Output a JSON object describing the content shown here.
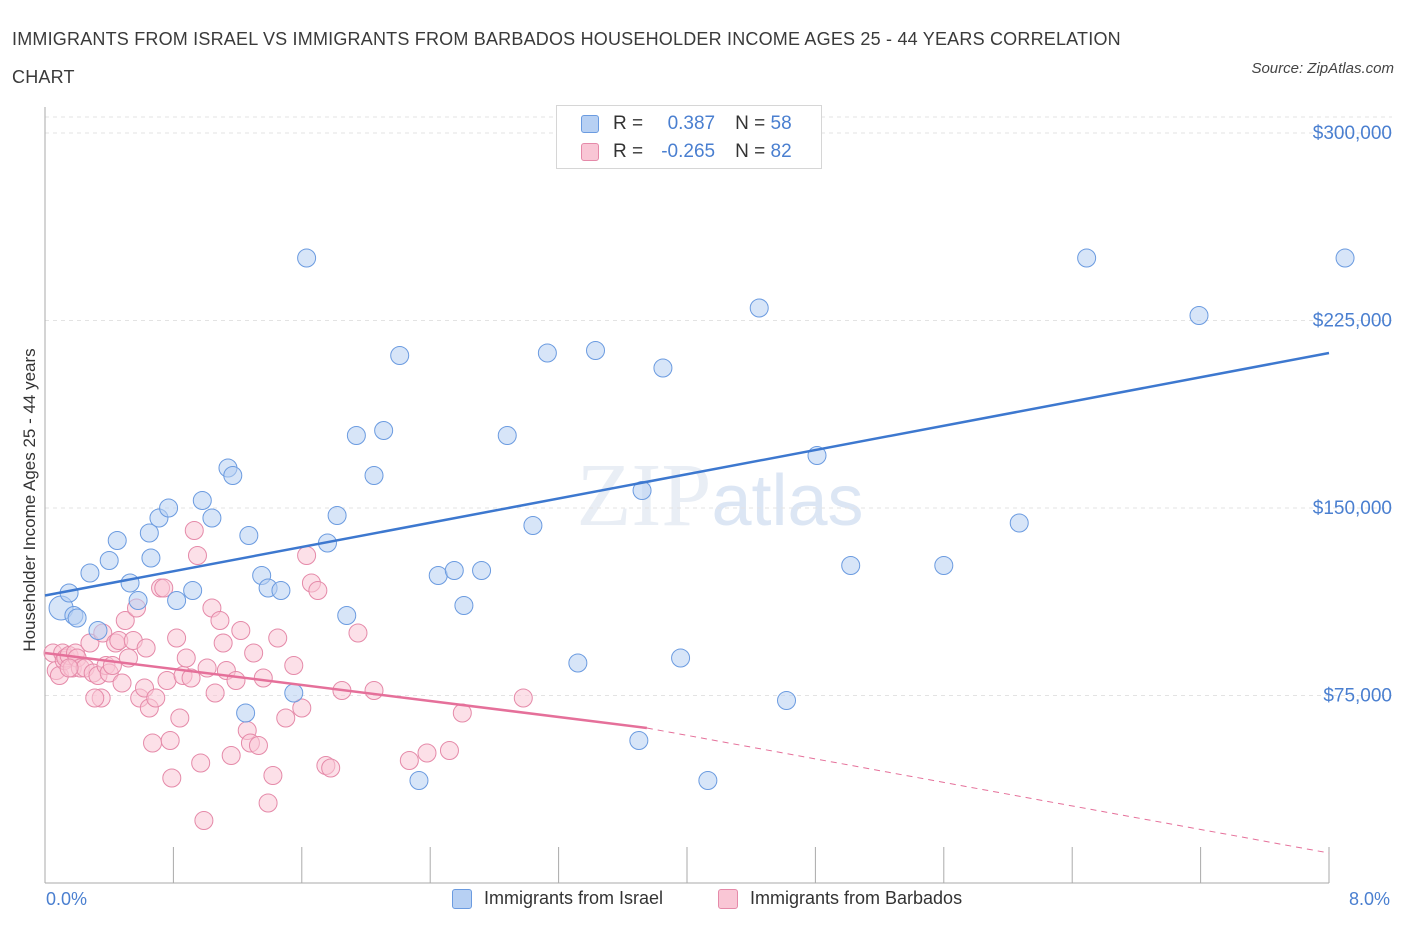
{
  "title": "IMMIGRANTS FROM ISRAEL VS IMMIGRANTS FROM BARBADOS HOUSEHOLDER INCOME AGES 25 - 44 YEARS CORRELATION CHART",
  "source": "Source: ZipAtlas.com",
  "watermark": "ZIPatlas",
  "legend_top": [
    {
      "r_label": "R =",
      "r_value": "0.387",
      "n_label": "N =",
      "n_value": "58",
      "color": "#6b9be0",
      "fill": "#b7d0f3"
    },
    {
      "r_label": "R =",
      "r_value": "-0.265",
      "n_label": "N =",
      "n_value": "82",
      "color": "#e58aa9",
      "fill": "#f9c6d5"
    }
  ],
  "colors": {
    "israel": "#3d78cf",
    "barbados": "#e5709a",
    "axis_text": "#4a7fd0",
    "grid": "#e3e3e3"
  },
  "chart_data": {
    "type": "scatter",
    "ylabel": "Householder Income Ages 25 - 44 years",
    "xlim": [
      0,
      8
    ],
    "ylim": [
      0,
      300000
    ],
    "x_tick_labels": [
      "0.0%",
      "8.0%"
    ],
    "y_ticks": [
      75000,
      150000,
      225000,
      300000
    ],
    "y_tick_labels": [
      "$75,000",
      "$150,000",
      "$225,000",
      "$300,000"
    ],
    "grid": true,
    "legend_placement": "top-center and bottom",
    "series": [
      {
        "name": "Immigrants from Israel",
        "color": "#3d78cf",
        "points": [
          [
            0.1,
            110000
          ],
          [
            0.15,
            116000
          ],
          [
            0.18,
            107000
          ],
          [
            0.28,
            124000
          ],
          [
            0.33,
            101000
          ],
          [
            0.4,
            129000
          ],
          [
            0.45,
            137000
          ],
          [
            0.53,
            120000
          ],
          [
            0.58,
            113000
          ],
          [
            0.65,
            140000
          ],
          [
            0.71,
            146000
          ],
          [
            0.77,
            150000
          ],
          [
            0.82,
            113000
          ],
          [
            0.92,
            117000
          ],
          [
            0.98,
            153000
          ],
          [
            1.04,
            146000
          ],
          [
            1.14,
            166000
          ],
          [
            1.17,
            163000
          ],
          [
            1.27,
            139000
          ],
          [
            1.35,
            123000
          ],
          [
            1.39,
            118000
          ],
          [
            1.47,
            117000
          ],
          [
            1.55,
            76000
          ],
          [
            1.63,
            250000
          ],
          [
            1.76,
            136000
          ],
          [
            1.82,
            147000
          ],
          [
            1.88,
            107000
          ],
          [
            1.94,
            179000
          ],
          [
            2.05,
            163000
          ],
          [
            2.11,
            181000
          ],
          [
            2.21,
            211000
          ],
          [
            2.33,
            41000
          ],
          [
            2.45,
            123000
          ],
          [
            2.55,
            125000
          ],
          [
            2.61,
            111000
          ],
          [
            2.72,
            125000
          ],
          [
            2.88,
            179000
          ],
          [
            3.04,
            143000
          ],
          [
            3.13,
            212000
          ],
          [
            3.32,
            88000
          ],
          [
            3.43,
            213000
          ],
          [
            3.72,
            157000
          ],
          [
            3.85,
            206000
          ],
          [
            3.96,
            90000
          ],
          [
            4.13,
            41000
          ],
          [
            4.45,
            230000
          ],
          [
            4.62,
            73000
          ],
          [
            4.81,
            171000
          ],
          [
            5.02,
            127000
          ],
          [
            5.6,
            127000
          ],
          [
            6.07,
            144000
          ],
          [
            6.49,
            250000
          ],
          [
            7.19,
            227000
          ],
          [
            8.1,
            250000
          ],
          [
            1.25,
            68000
          ],
          [
            3.7,
            57000
          ],
          [
            0.66,
            130000
          ],
          [
            0.2,
            106000
          ]
        ],
        "trend": {
          "x": [
            0,
            8
          ],
          "y": [
            115000,
            212000
          ]
        }
      },
      {
        "name": "Immigrants from Barbados",
        "color": "#e5709a",
        "points": [
          [
            0.05,
            92000
          ],
          [
            0.07,
            85000
          ],
          [
            0.09,
            83000
          ],
          [
            0.11,
            92000
          ],
          [
            0.12,
            89000
          ],
          [
            0.13,
            90000
          ],
          [
            0.15,
            91000
          ],
          [
            0.17,
            86000
          ],
          [
            0.19,
            92000
          ],
          [
            0.2,
            90000
          ],
          [
            0.22,
            86000
          ],
          [
            0.25,
            86000
          ],
          [
            0.28,
            96000
          ],
          [
            0.3,
            84000
          ],
          [
            0.33,
            83000
          ],
          [
            0.35,
            74000
          ],
          [
            0.36,
            100000
          ],
          [
            0.38,
            87000
          ],
          [
            0.4,
            84000
          ],
          [
            0.42,
            87000
          ],
          [
            0.44,
            96000
          ],
          [
            0.46,
            97000
          ],
          [
            0.48,
            80000
          ],
          [
            0.5,
            105000
          ],
          [
            0.52,
            90000
          ],
          [
            0.55,
            97000
          ],
          [
            0.57,
            110000
          ],
          [
            0.59,
            74000
          ],
          [
            0.62,
            78000
          ],
          [
            0.63,
            94000
          ],
          [
            0.65,
            70000
          ],
          [
            0.67,
            56000
          ],
          [
            0.69,
            74000
          ],
          [
            0.72,
            118000
          ],
          [
            0.74,
            118000
          ],
          [
            0.76,
            81000
          ],
          [
            0.78,
            57000
          ],
          [
            0.79,
            42000
          ],
          [
            0.82,
            98000
          ],
          [
            0.84,
            66000
          ],
          [
            0.86,
            83000
          ],
          [
            0.88,
            90000
          ],
          [
            0.91,
            82000
          ],
          [
            0.93,
            141000
          ],
          [
            0.95,
            131000
          ],
          [
            0.97,
            48000
          ],
          [
            0.99,
            25000
          ],
          [
            1.01,
            86000
          ],
          [
            1.04,
            110000
          ],
          [
            1.06,
            76000
          ],
          [
            1.09,
            105000
          ],
          [
            1.11,
            96000
          ],
          [
            1.13,
            85000
          ],
          [
            1.16,
            51000
          ],
          [
            1.19,
            81000
          ],
          [
            1.22,
            101000
          ],
          [
            1.26,
            61000
          ],
          [
            1.28,
            56000
          ],
          [
            1.3,
            92000
          ],
          [
            1.33,
            55000
          ],
          [
            1.36,
            82000
          ],
          [
            1.39,
            32000
          ],
          [
            1.42,
            43000
          ],
          [
            1.45,
            98000
          ],
          [
            1.5,
            66000
          ],
          [
            1.55,
            87000
          ],
          [
            1.6,
            70000
          ],
          [
            1.63,
            131000
          ],
          [
            1.66,
            120000
          ],
          [
            1.7,
            117000
          ],
          [
            1.75,
            47000
          ],
          [
            1.78,
            46000
          ],
          [
            1.85,
            77000
          ],
          [
            1.95,
            100000
          ],
          [
            2.05,
            77000
          ],
          [
            2.27,
            49000
          ],
          [
            2.38,
            52000
          ],
          [
            2.52,
            53000
          ],
          [
            2.6,
            68000
          ],
          [
            2.98,
            74000
          ],
          [
            0.31,
            74000
          ],
          [
            0.15,
            86000
          ]
        ],
        "trend": {
          "x": [
            0,
            3.75
          ],
          "y": [
            92000,
            62000
          ]
        },
        "trend_dashed": {
          "x": [
            3.75,
            8
          ],
          "y": [
            62000,
            12000
          ]
        }
      }
    ]
  },
  "bottom_legend": [
    {
      "label": "Immigrants from Israel"
    },
    {
      "label": "Immigrants from Barbados"
    }
  ]
}
